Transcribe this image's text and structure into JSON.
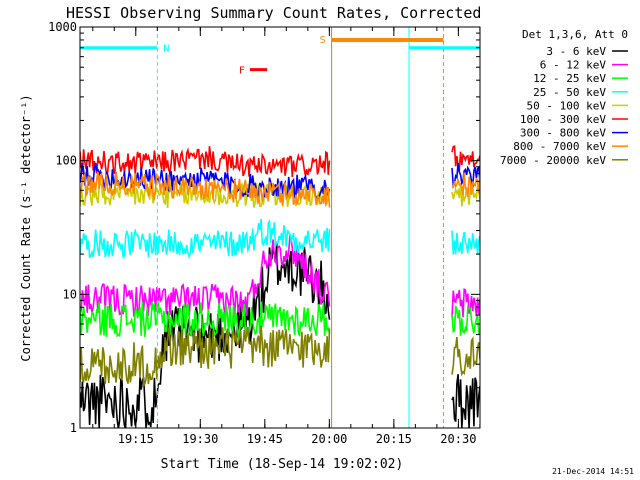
{
  "chart_data": {
    "type": "line",
    "title": "HESSI Observing Summary Count Rates, Corrected",
    "xlabel": "Start Time (18-Sep-14 19:02:02)",
    "ylabel": "Corrected Count Rate (s⁻¹ detector⁻¹)",
    "yscale": "log",
    "ylim": [
      1,
      1000
    ],
    "xlim_minutes": [
      0,
      93
    ],
    "x_ticks": [
      {
        "label": "19:15",
        "minutes": 12.97
      },
      {
        "label": "19:30",
        "minutes": 27.97
      },
      {
        "label": "19:45",
        "minutes": 42.97
      },
      {
        "label": "20:00",
        "minutes": 57.97
      },
      {
        "label": "20:15",
        "minutes": 72.97
      },
      {
        "label": "20:30",
        "minutes": 87.97
      }
    ],
    "y_ticks": [
      {
        "label": "1",
        "value": 1
      },
      {
        "label": "10",
        "value": 10
      },
      {
        "label": "100",
        "value": 100
      },
      {
        "label": "1000",
        "value": 1000
      }
    ],
    "legend_header": "Det 1,3,6, Att 0",
    "legend_position": "right",
    "timestamp": "21-Dec-2014 14:51",
    "series": [
      {
        "name": "3 - 6 keV",
        "color": "#000000",
        "segments": [
          {
            "x": [
              0,
              18,
              19,
              30,
              38,
              42,
              44,
              46,
              50,
              54,
              56,
              58
            ],
            "y": [
              1.6,
              1.6,
              5,
              5,
              5.5,
              9,
              15,
              17,
              16,
              13,
              11,
              9
            ]
          },
          {
            "x": [
              86.5,
              93
            ],
            "y": [
              1.6,
              1.6
            ]
          }
        ]
      },
      {
        "name": "6 - 12 keV",
        "color": "#ff00ff",
        "segments": [
          {
            "x": [
              0,
              30,
              36,
              38,
              40,
              42,
              44,
              46,
              50,
              54,
              56,
              58
            ],
            "y": [
              9,
              9,
              9,
              8,
              10,
              15,
              21,
              22,
              21,
              14,
              11,
              9
            ]
          },
          {
            "x": [
              86.5,
              93
            ],
            "y": [
              8.5,
              8.5
            ]
          }
        ]
      },
      {
        "name": "12 - 25 keV",
        "color": "#00ff00",
        "segments": [
          {
            "x": [
              0,
              58
            ],
            "y": [
              6.5,
              6.5
            ]
          },
          {
            "x": [
              86.5,
              93
            ],
            "y": [
              6.5,
              6.5
            ]
          }
        ]
      },
      {
        "name": "25 - 50 keV",
        "color": "#00ffff",
        "segments": [
          {
            "x": [
              0,
              30,
              36,
              40,
              42,
              46,
              50,
              58
            ],
            "y": [
              24,
              24,
              24,
              26,
              30,
              28,
              26,
              25
            ]
          },
          {
            "x": [
              86.5,
              93
            ],
            "y": [
              24,
              24
            ]
          }
        ]
      },
      {
        "name": "50 - 100 keV",
        "color": "#cccc00",
        "segments": [
          {
            "x": [
              0,
              58
            ],
            "y": [
              55,
              55
            ]
          },
          {
            "x": [
              86.5,
              93
            ],
            "y": [
              55,
              55
            ]
          }
        ]
      },
      {
        "name": "100 - 300 keV",
        "color": "#ff0000",
        "segments": [
          {
            "x": [
              0,
              10,
              20,
              30,
              34,
              40,
              50,
              58
            ],
            "y": [
              100,
              95,
              98,
              105,
              95,
              90,
              90,
              95
            ]
          },
          {
            "x": [
              86.5,
              88,
              93
            ],
            "y": [
              108,
              100,
              95
            ]
          }
        ]
      },
      {
        "name": "300 - 800 keV",
        "color": "#0000ff",
        "segments": [
          {
            "x": [
              0,
              10,
              20,
              32,
              35,
              40,
              50,
              58
            ],
            "y": [
              80,
              75,
              72,
              72,
              66,
              65,
              64,
              63
            ]
          },
          {
            "x": [
              86.5,
              93
            ],
            "y": [
              80,
              72
            ]
          }
        ]
      },
      {
        "name": "800 - 7000 keV",
        "color": "#ff8800",
        "segments": [
          {
            "x": [
              0,
              10,
              20,
              32,
              35,
              40,
              50,
              58
            ],
            "y": [
              68,
              66,
              64,
              63,
              60,
              58,
              56,
              55
            ]
          },
          {
            "x": [
              86.5,
              93
            ],
            "y": [
              68,
              64
            ]
          }
        ]
      },
      {
        "name": "7000 - 20000 keV",
        "color": "#808000",
        "segments": [
          {
            "x": [
              0,
              18,
              19,
              58
            ],
            "y": [
              3,
              3,
              4,
              4
            ]
          },
          {
            "x": [
              86.5,
              93
            ],
            "y": [
              3.5,
              3.5
            ]
          }
        ]
      }
    ],
    "annotations": {
      "night_bars": [
        {
          "label": "N",
          "x_start": 0,
          "x_end": 18,
          "y": 700,
          "color": "#00ffff"
        },
        {
          "label": "",
          "x_start": 76.5,
          "x_end": 93,
          "y": 700,
          "color": "#00ffff"
        }
      ],
      "saa_bar": {
        "label": "S",
        "x_start": 58.5,
        "x_end": 84.5,
        "y": 800,
        "color": "#ff8800"
      },
      "flare_marker": {
        "label": "F",
        "x_start": 39.5,
        "x_end": 43.5,
        "y": 480,
        "color": "#ff0000"
      },
      "vlines": [
        {
          "x": 0,
          "color": "#00ffff",
          "style": "solid"
        },
        {
          "x": 18,
          "color": "#00ffff",
          "style": "dashed"
        },
        {
          "x": 58.5,
          "color": "#cc8800",
          "style": "solid"
        },
        {
          "x": 76.5,
          "color": "#00ffff",
          "style": "solid"
        },
        {
          "x": 84.5,
          "color": "#ff8800",
          "style": "dashed"
        },
        {
          "x": 93,
          "color": "#00ffff",
          "style": "dashed"
        }
      ]
    }
  }
}
